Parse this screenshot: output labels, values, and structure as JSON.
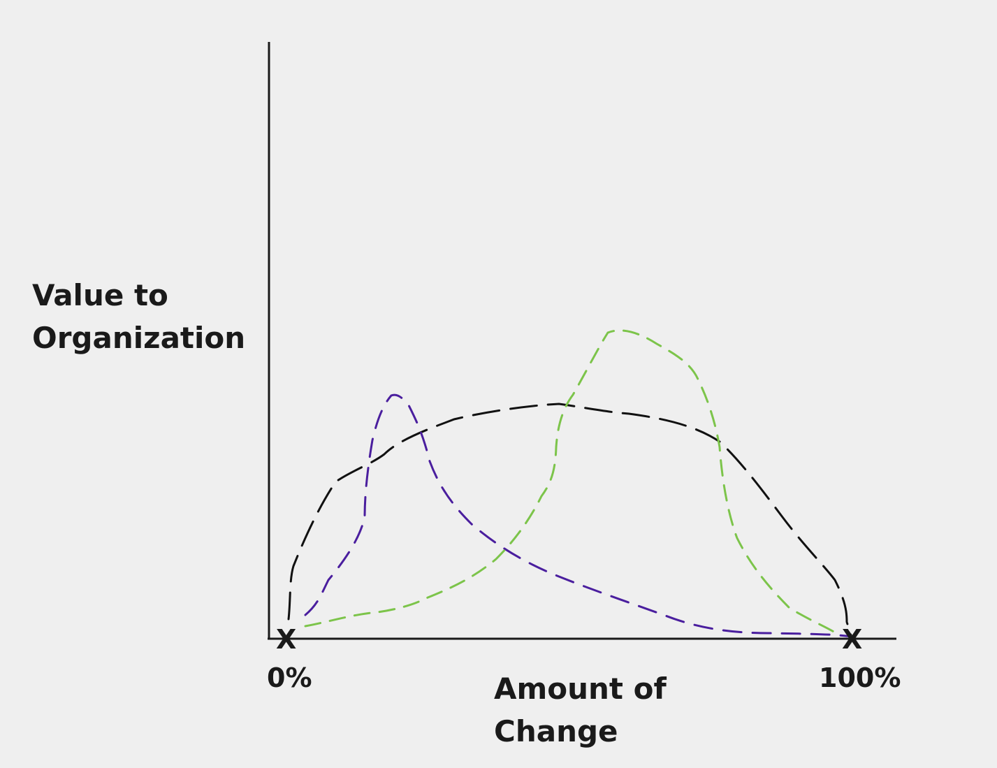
{
  "diagram": {
    "y_axis_label_line1": "Value to",
    "y_axis_label_line2": "Organization",
    "x_axis_label_line1": "Amount of",
    "x_axis_label_line2": "Change",
    "x_min_label": "0%",
    "x_max_label": "100%",
    "endpoint_marker_left": "X",
    "endpoint_marker_right": "X"
  },
  "curves": [
    {
      "color": "#111111",
      "style": "dashed"
    },
    {
      "color": "#4a1e9e",
      "style": "dashed"
    },
    {
      "color": "#7cc44a",
      "style": "dashed"
    }
  ]
}
